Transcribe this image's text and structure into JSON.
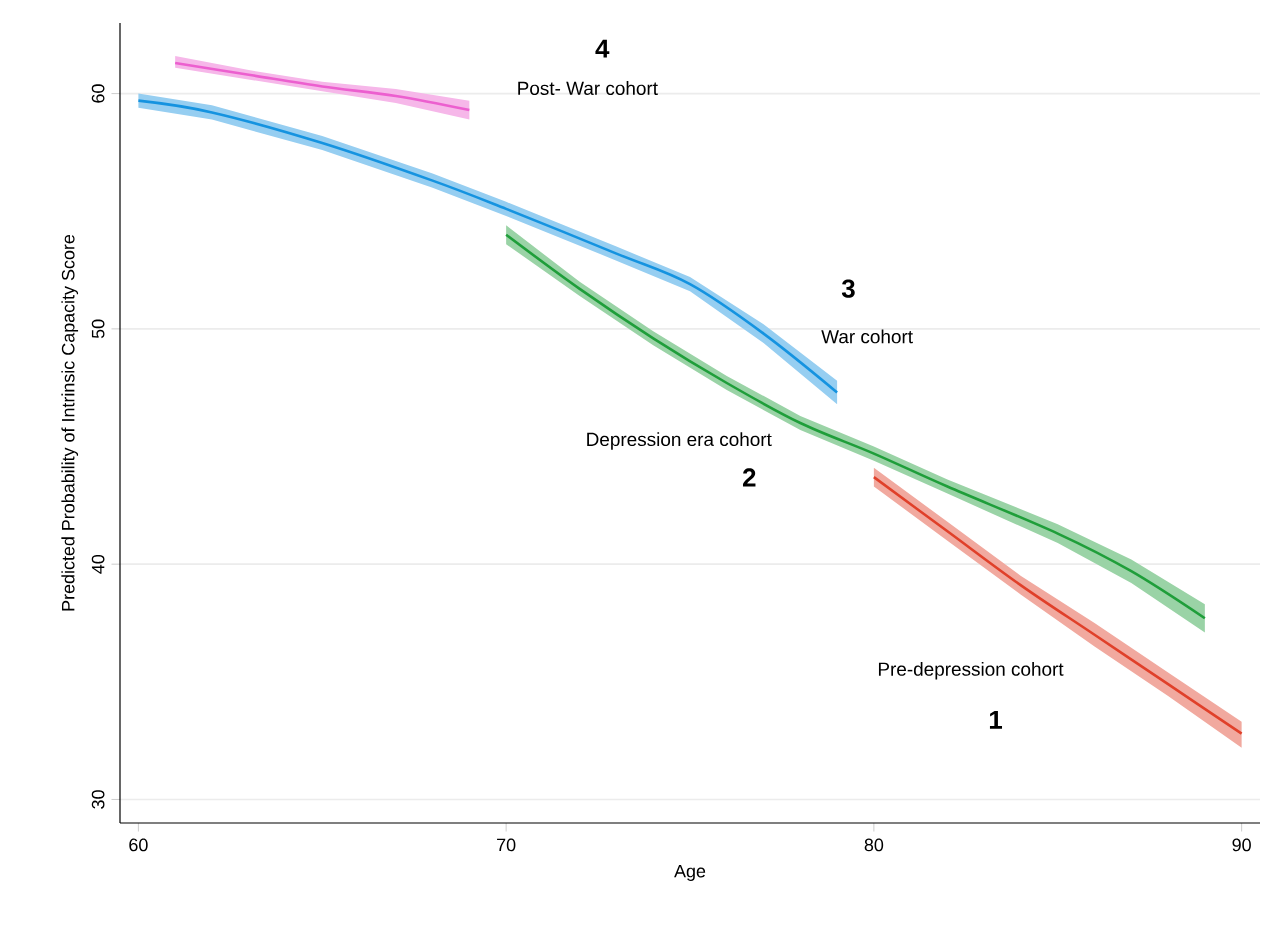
{
  "chart_data": {
    "type": "line",
    "xlabel": "Age",
    "ylabel": "Predicted Probability of Intrinsic Capacity Score",
    "xlim": [
      59.5,
      90.5
    ],
    "ylim": [
      29,
      63
    ],
    "xticks": [
      60,
      70,
      80,
      90
    ],
    "yticks": [
      30,
      40,
      50,
      60
    ],
    "grid": "y",
    "series": [
      {
        "name": "Post- War cohort",
        "color": "#ec5fcf",
        "x": [
          61,
          63,
          65,
          67,
          69
        ],
        "values": [
          61.3,
          60.8,
          60.3,
          59.9,
          59.3
        ],
        "lower": [
          61.1,
          60.6,
          60.1,
          59.6,
          58.9
        ],
        "upper": [
          61.6,
          61.0,
          60.5,
          60.2,
          59.7
        ]
      },
      {
        "name": "War cohort",
        "color": "#1593e0",
        "x": [
          60,
          62,
          65,
          68,
          70,
          73,
          75,
          77,
          79
        ],
        "values": [
          59.7,
          59.2,
          57.9,
          56.3,
          55.1,
          53.2,
          51.9,
          49.8,
          47.3
        ],
        "lower": [
          59.4,
          58.9,
          57.6,
          56.0,
          54.8,
          52.9,
          51.6,
          49.4,
          46.8
        ],
        "upper": [
          60.0,
          59.5,
          58.2,
          56.6,
          55.4,
          53.5,
          52.2,
          50.2,
          47.8
        ]
      },
      {
        "name": "Depression era cohort",
        "color": "#1f9e3a",
        "x": [
          70,
          72,
          74,
          76,
          78,
          80,
          82,
          85,
          87,
          89
        ],
        "values": [
          54.0,
          51.7,
          49.6,
          47.7,
          46.0,
          44.7,
          43.3,
          41.3,
          39.7,
          37.7
        ],
        "lower": [
          53.6,
          51.4,
          49.3,
          47.4,
          45.7,
          44.4,
          43.0,
          40.9,
          39.2,
          37.1
        ],
        "upper": [
          54.4,
          52.0,
          49.9,
          48.0,
          46.3,
          45.0,
          43.6,
          41.7,
          40.2,
          38.3
        ]
      },
      {
        "name": "Pre-depression cohort",
        "color": "#e0402a",
        "x": [
          80,
          82,
          84,
          86,
          88,
          90
        ],
        "values": [
          43.7,
          41.4,
          39.1,
          37.0,
          34.9,
          32.8
        ],
        "lower": [
          43.3,
          41.0,
          38.7,
          36.5,
          34.4,
          32.2
        ],
        "upper": [
          44.1,
          41.8,
          39.5,
          37.5,
          35.4,
          33.3
        ]
      }
    ],
    "annotations": [
      "4",
      "3",
      "2",
      "1"
    ]
  }
}
